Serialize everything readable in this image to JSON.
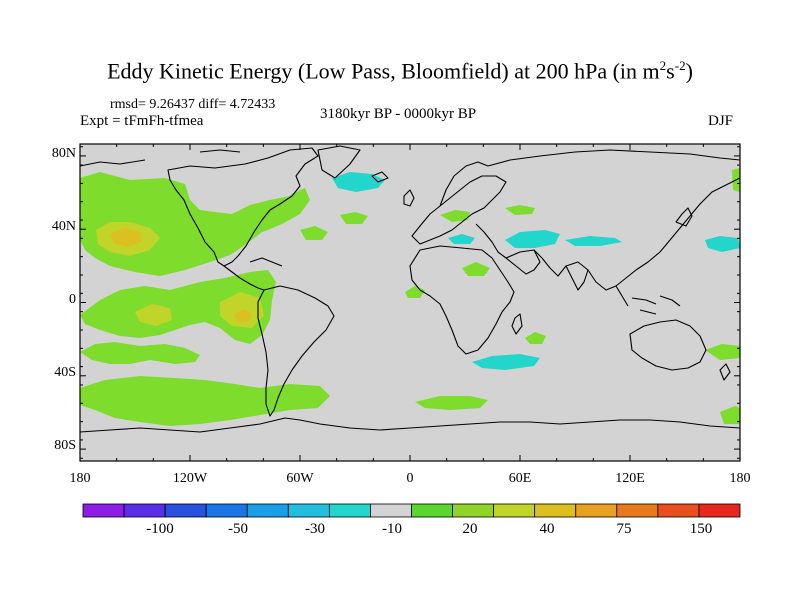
{
  "title": {
    "main": "Eddy Kinetic Energy (Low Pass, Bloomfield) at 200 hPa (in m",
    "unit_exp1": "2",
    "unit_mid": "s",
    "unit_exp2": "-2",
    "close": ")"
  },
  "stats": "rmsd= 9.26437 diff= 4.72433",
  "experiment": "Expt = tFmFh-tfmea",
  "period": "3180kyr BP - 0000kyr BP",
  "season": "DJF",
  "map": {
    "background_color": "#d3d3d3",
    "lat_labels": [
      "80N",
      "40N",
      "0",
      "40S",
      "80S"
    ],
    "lon_labels": [
      "180",
      "120W",
      "60W",
      "0",
      "60E",
      "120E",
      "180"
    ]
  },
  "colorbar": {
    "colors": [
      "#8c1ee6",
      "#5a2ee8",
      "#2a50e0",
      "#1a76e6",
      "#1a9ee6",
      "#22bee0",
      "#22d6cc",
      "#d3d3d3",
      "#5ad62e",
      "#90d42a",
      "#c0d42a",
      "#dcc020",
      "#e8a020",
      "#e87a1e",
      "#e84e1e",
      "#e6281c"
    ],
    "labels": [
      "-100",
      "-50",
      "-30",
      "-10",
      "20",
      "40",
      "75",
      "150"
    ]
  },
  "legend_colors": {
    "light_green": "#7ddc2c",
    "green": "#5ad62e",
    "yellow_green": "#c0d42a",
    "cyan": "#22d6cc"
  }
}
